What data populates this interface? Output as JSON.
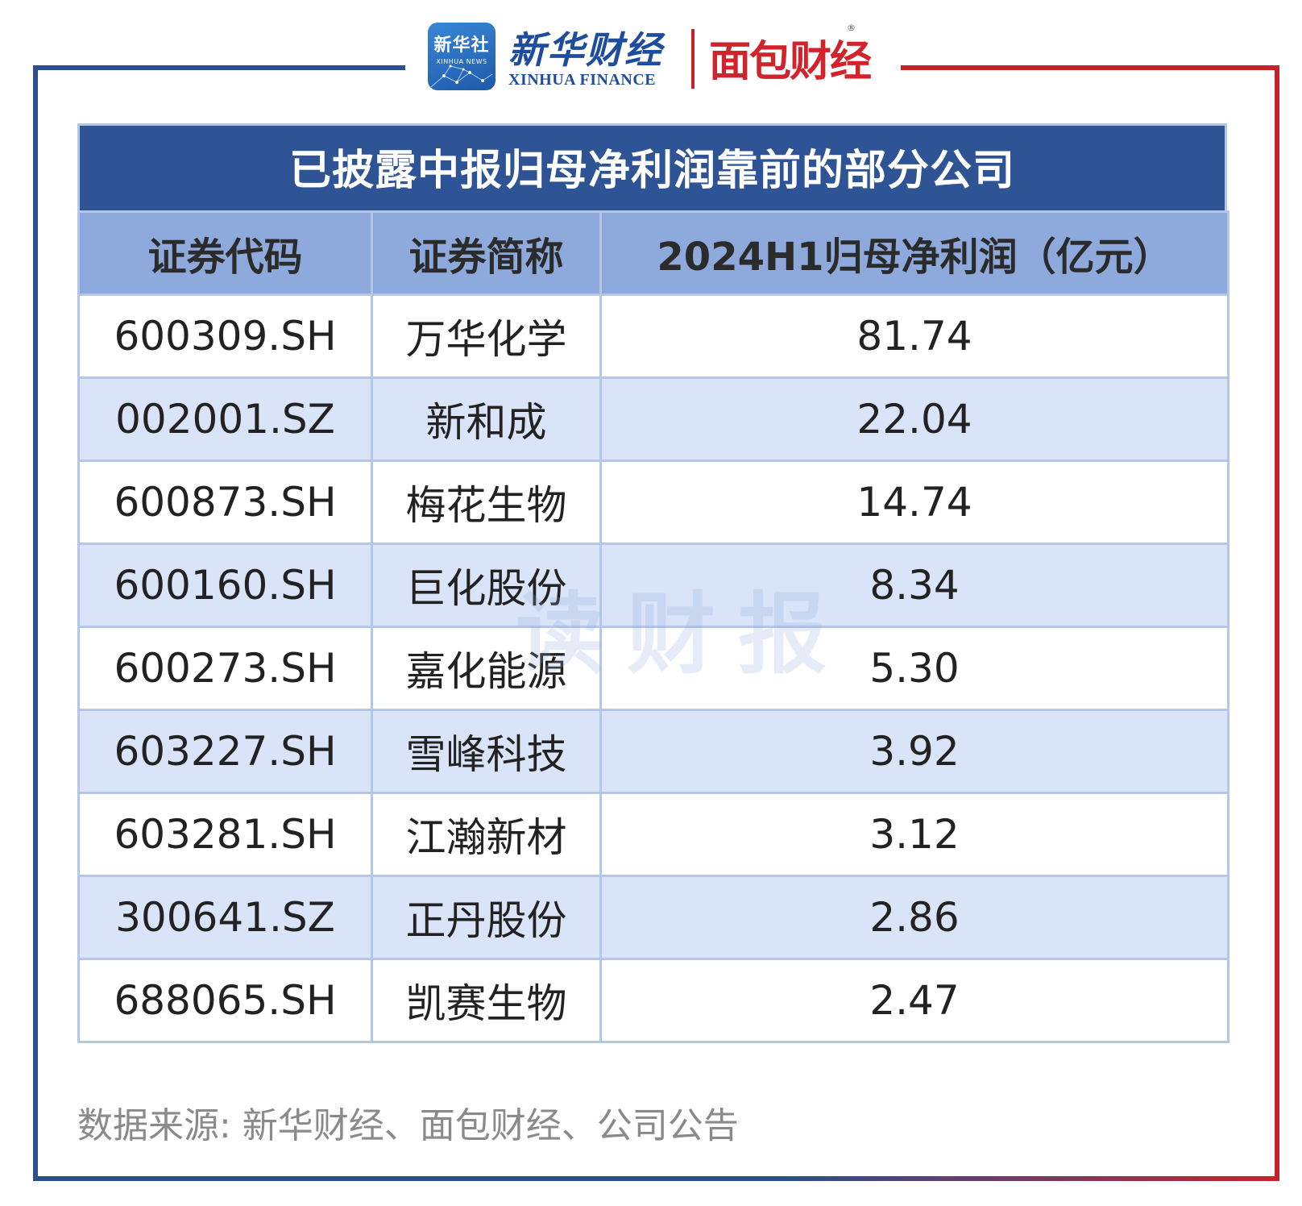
{
  "branding": {
    "xinhua_badge_cn": "新华社",
    "xinhua_badge_en": "XINHUA NEWS",
    "xinhua_finance_cn": "新华财经",
    "xinhua_finance_en": "XINHUA FINANCE",
    "mianbao_logo": "面包财经",
    "registered_mark": "®"
  },
  "table": {
    "title": "已披露中报归母净利润靠前的部分公司",
    "headers": [
      "证券代码",
      "证券简称",
      "2024H1归母净利润（亿元）"
    ],
    "rows": [
      {
        "code": "600309.SH",
        "name": "万华化学",
        "profit": "81.74"
      },
      {
        "code": "002001.SZ",
        "name": "新和成",
        "profit": "22.04"
      },
      {
        "code": "600873.SH",
        "name": "梅花生物",
        "profit": "14.74"
      },
      {
        "code": "600160.SH",
        "name": "巨化股份",
        "profit": "8.34"
      },
      {
        "code": "600273.SH",
        "name": "嘉化能源",
        "profit": "5.30"
      },
      {
        "code": "603227.SH",
        "name": "雪峰科技",
        "profit": "3.92"
      },
      {
        "code": "603281.SH",
        "name": "江瀚新材",
        "profit": "3.12"
      },
      {
        "code": "300641.SZ",
        "name": "正丹股份",
        "profit": "2.86"
      },
      {
        "code": "688065.SH",
        "name": "凯赛生物",
        "profit": "2.47"
      }
    ]
  },
  "watermark": "读财报",
  "source": "数据来源: 新华财经、面包财经、公司公告",
  "colors": {
    "frame_blue": "#2a4f92",
    "frame_red": "#c4232c",
    "title_bg": "#2e5495",
    "header_bg": "#8eaadc",
    "row_alt_bg": "#d9e4f8"
  }
}
